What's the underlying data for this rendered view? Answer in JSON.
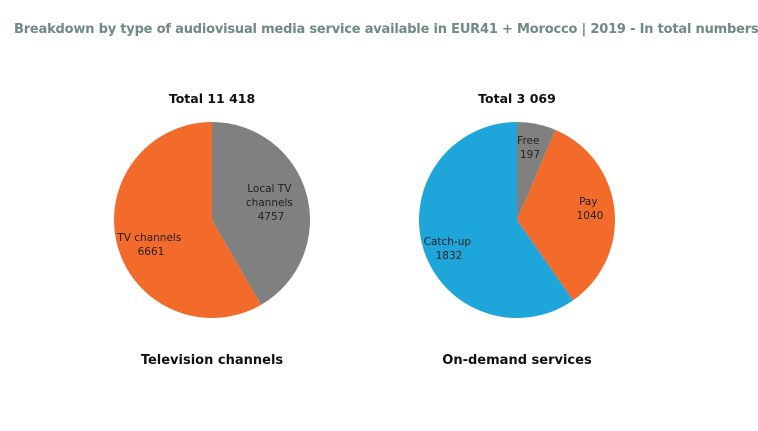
{
  "title": "Breakdown by type of audiovisual media service available in EUR41 + Morocco | 2019 - In total numbers",
  "chart_data": [
    {
      "type": "pie",
      "total_label": "Total 11 418",
      "caption": "Television channels",
      "slices": [
        {
          "label_lines": [
            "Local TV",
            "channels"
          ],
          "value": 4757,
          "value_text": "4757",
          "color": "#808080"
        },
        {
          "label_lines": [
            "TV channels"
          ],
          "value": 6661,
          "value_text": "6661",
          "color": "#f26b2a"
        }
      ]
    },
    {
      "type": "pie",
      "total_label": "Total 3 069",
      "caption": "On-demand services",
      "slices": [
        {
          "label_lines": [
            "Free"
          ],
          "value": 197,
          "value_text": "197",
          "color": "#808080"
        },
        {
          "label_lines": [
            "Pay"
          ],
          "value": 1040,
          "value_text": "1040",
          "color": "#f26b2a"
        },
        {
          "label_lines": [
            "Catch-up"
          ],
          "value": 1832,
          "value_text": "1832",
          "color": "#1ea6da"
        }
      ]
    }
  ]
}
